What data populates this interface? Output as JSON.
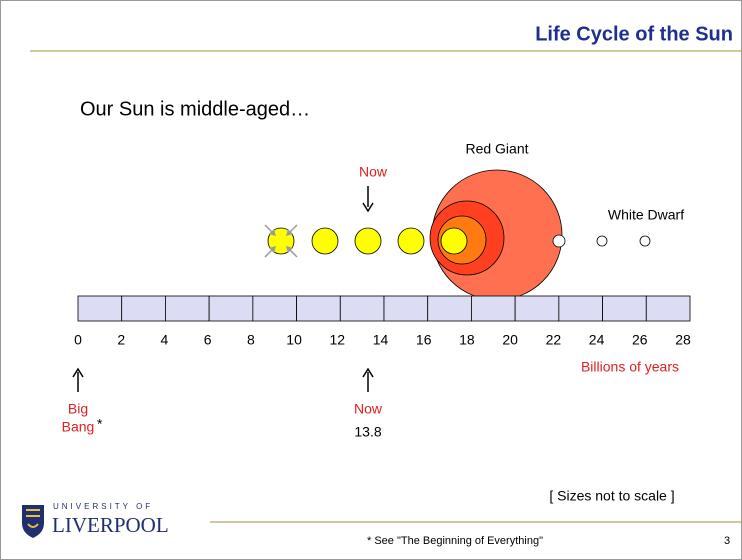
{
  "header": {
    "title": "Life Cycle of the Sun"
  },
  "intro": "Our Sun is middle-aged…",
  "stages": {
    "red_giant": "Red Giant",
    "white_dwarf": "White Dwarf",
    "now_top": "Now"
  },
  "timeline": {
    "ticks": [
      "0",
      "2",
      "4",
      "6",
      "8",
      "10",
      "12",
      "14",
      "16",
      "18",
      "20",
      "22",
      "24",
      "26",
      "28"
    ],
    "unit": "Billions of years"
  },
  "markers": {
    "big_bang": [
      "Big",
      "Bang"
    ],
    "asterisk": "*",
    "now": "Now",
    "now_value": "13.8"
  },
  "note": "[ Sizes not to scale ]",
  "logo": {
    "line1": "UNIVERSITY OF",
    "line2": "LIVERPOOL"
  },
  "footer": {
    "footnote": "* See \"The Beginning of Everything\"",
    "page": "3"
  }
}
